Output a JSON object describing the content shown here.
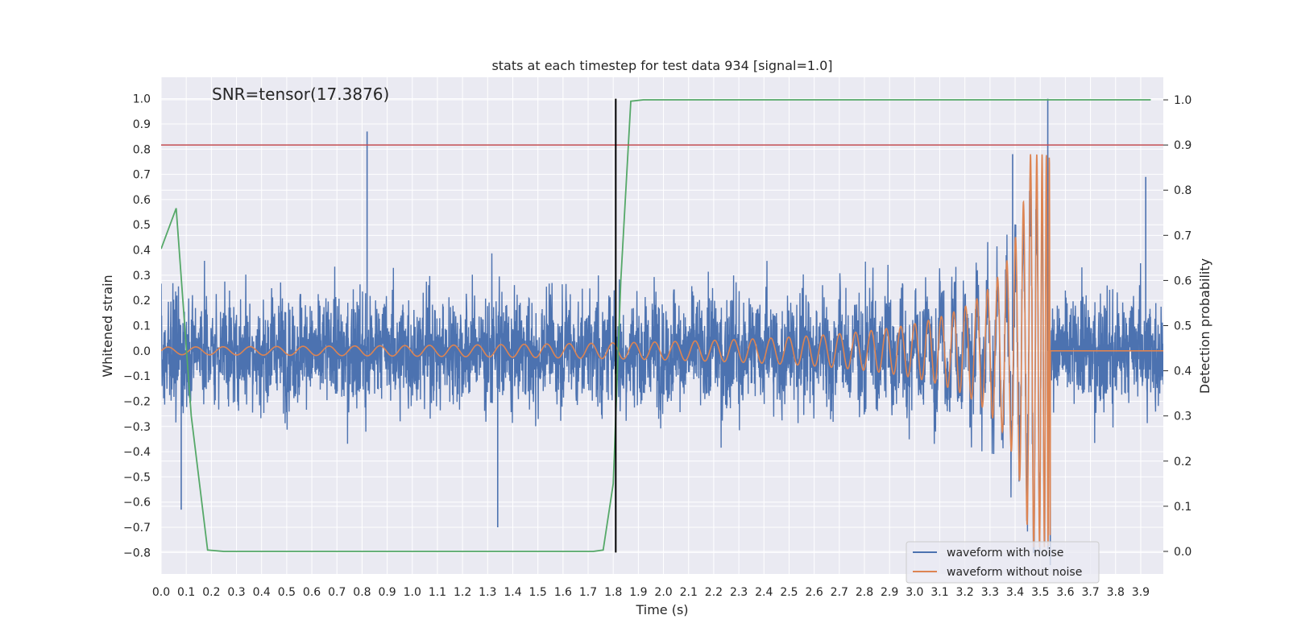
{
  "chart_data": {
    "type": "line",
    "title": "stats at each timestep for test data 934 [signal=1.0]",
    "xlabel": "Time (s)",
    "ylabel": "Whitened strain",
    "y2label": "Detection probability",
    "annotation": "SNR=tensor(17.3876)",
    "xlim": [
      0.0,
      3.99
    ],
    "ylim": [
      -0.885,
      1.085
    ],
    "y2lim": [
      -0.05,
      1.05
    ],
    "x_ticks": [
      0.0,
      0.1,
      0.2,
      0.3,
      0.4,
      0.5,
      0.6,
      0.7,
      0.8,
      0.9,
      1.0,
      1.1,
      1.2,
      1.3,
      1.4,
      1.5,
      1.6,
      1.7,
      1.8,
      1.9,
      2.0,
      2.1,
      2.2,
      2.3,
      2.4,
      2.5,
      2.6,
      2.7,
      2.8,
      2.9,
      3.0,
      3.1,
      3.2,
      3.3,
      3.4,
      3.5,
      3.6,
      3.7,
      3.8,
      3.9
    ],
    "x_tick_labels": [
      "0.0",
      "0.1",
      "0.2",
      "0.3",
      "0.4",
      "0.5",
      "0.6",
      "0.7",
      "0.8",
      "0.9",
      "1.0",
      "1.1",
      "1.2",
      "1.3",
      "1.4",
      "1.5",
      "1.6",
      "1.7",
      "1.8",
      "1.9",
      "2.0",
      "2.1",
      "2.2",
      "2.3",
      "2.4",
      "2.5",
      "2.6",
      "2.7",
      "2.8",
      "2.9",
      "3.0",
      "3.1",
      "3.2",
      "3.3",
      "3.4",
      "3.5",
      "3.6",
      "3.7",
      "3.8",
      "3.9"
    ],
    "y_ticks": [
      1.0,
      0.9,
      0.8,
      0.7,
      0.6,
      0.5,
      0.4,
      0.3,
      0.2,
      0.1,
      0.0,
      -0.1,
      -0.2,
      -0.3,
      -0.4,
      -0.5,
      -0.6,
      -0.7,
      -0.8
    ],
    "y_tick_labels": [
      "1.0",
      "0.9",
      "0.8",
      "0.7",
      "0.6",
      "0.5",
      "0.4",
      "0.3",
      "0.2",
      "0.1",
      "0.0",
      "−0.1",
      "−0.2",
      "−0.3",
      "−0.4",
      "−0.5",
      "−0.6",
      "−0.7",
      "−0.8"
    ],
    "y2_ticks": [
      1.0,
      0.9,
      0.8,
      0.7,
      0.6,
      0.5,
      0.4,
      0.3,
      0.2,
      0.1,
      0.0
    ],
    "y2_tick_labels": [
      "1.0",
      "0.9",
      "0.8",
      "0.7",
      "0.6",
      "0.5",
      "0.4",
      "0.3",
      "0.2",
      "0.1",
      "0.0"
    ],
    "grid": true,
    "legend_position": "bottom-right",
    "series": [
      {
        "name": "waveform with noise",
        "color": "#4c72b0",
        "axis": "left",
        "style": "dense noisy trace",
        "approx_band": [
          -0.45,
          0.5
        ],
        "peaks": [
          [
            0.82,
            0.87
          ],
          [
            0.08,
            -0.63
          ],
          [
            1.34,
            -0.7
          ],
          [
            3.39,
            0.78
          ],
          [
            3.53,
            1.0
          ],
          [
            3.54,
            -0.85
          ],
          [
            3.92,
            0.69
          ]
        ]
      },
      {
        "name": "waveform without noise",
        "color": "#dd8452",
        "axis": "left",
        "style": "chirp",
        "start_amplitude": 0.015,
        "merger_time": 3.54,
        "peak_amplitude": 0.78,
        "post_merger_value": 0.0
      },
      {
        "color": "#55a868",
        "axis": "right",
        "x": [
          0.0,
          0.06,
          0.12,
          0.185,
          0.25,
          0.4,
          0.8,
          1.2,
          1.6,
          1.72,
          1.76,
          1.8,
          1.83,
          1.87,
          1.92,
          2.5,
          3.0,
          3.5,
          3.94
        ],
        "y": [
          0.67,
          0.76,
          0.3,
          0.003,
          0.0,
          0.0,
          0.0,
          0.0,
          0.0,
          0.0,
          0.003,
          0.15,
          0.6,
          0.997,
          1.0,
          1.0,
          1.0,
          1.0,
          1.0
        ]
      }
    ],
    "threshold_line": {
      "axis": "right",
      "value": 0.9,
      "color": "#c44e52"
    },
    "vertical_marker": {
      "x": 1.81,
      "y_range": [
        -0.8,
        1.0
      ],
      "color": "#000000"
    }
  }
}
